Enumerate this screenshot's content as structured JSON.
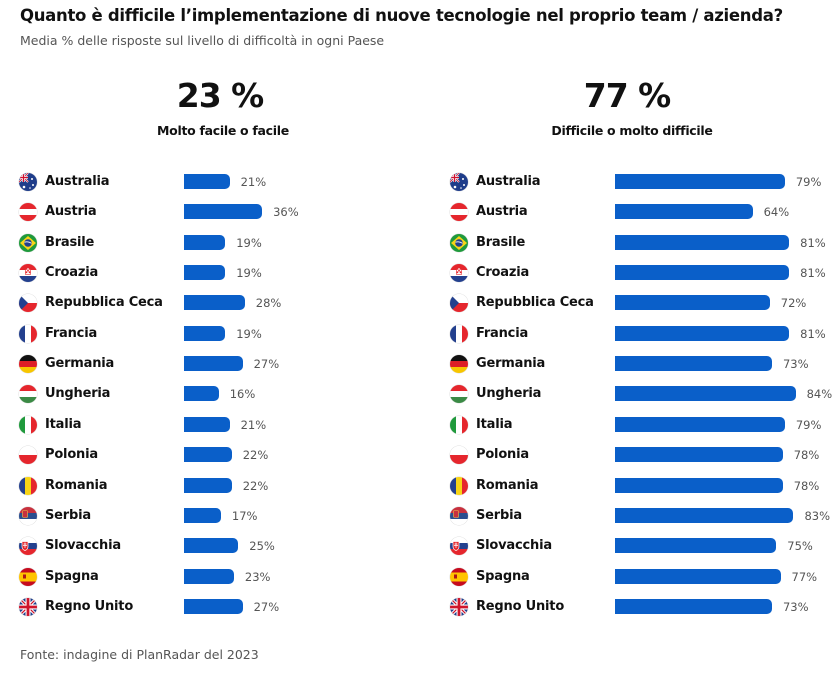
{
  "header": {
    "title": "Quanto è difficile l’implementazione di nuove tecnologie nel proprio team / azienda?",
    "subtitle": "Media % delle risposte sul livello di difficoltà in ogni Paese"
  },
  "footer": {
    "source": "Fonte: indagine di PlanRadar del 2023"
  },
  "chart_data": [
    {
      "type": "bar",
      "orientation": "horizontal",
      "title": "23 %",
      "subtitle": "Molto facile o facile",
      "total_value": 23,
      "color": "#0a5fc9",
      "categories": [
        "Australia",
        "Austria",
        "Brasile",
        "Croazia",
        "Repubblica Ceca",
        "Francia",
        "Germania",
        "Ungheria",
        "Italia",
        "Polonia",
        "Romania",
        "Serbia",
        "Slovacchia",
        "Spagna",
        "Regno Unito"
      ],
      "flags": [
        "australia-flag-icon",
        "austria-flag-icon",
        "brazil-flag-icon",
        "croatia-flag-icon",
        "czech-flag-icon",
        "france-flag-icon",
        "germany-flag-icon",
        "hungary-flag-icon",
        "italy-flag-icon",
        "poland-flag-icon",
        "romania-flag-icon",
        "serbia-flag-icon",
        "slovakia-flag-icon",
        "spain-flag-icon",
        "uk-flag-icon"
      ],
      "values": [
        21,
        36,
        19,
        19,
        28,
        19,
        27,
        16,
        21,
        22,
        22,
        17,
        25,
        23,
        27
      ],
      "labels": [
        "21%",
        "36%",
        "19%",
        "19%",
        "28%",
        "19%",
        "27%",
        "16%",
        "21%",
        "22%",
        "22%",
        "17%",
        "25%",
        "23%",
        "27%"
      ],
      "xlim": [
        0,
        100
      ],
      "grid": false
    },
    {
      "type": "bar",
      "orientation": "horizontal",
      "title": "77 %",
      "subtitle": "Difficile o molto difficile",
      "total_value": 77,
      "color": "#0a5fc9",
      "categories": [
        "Australia",
        "Austria",
        "Brasile",
        "Croazia",
        "Repubblica Ceca",
        "Francia",
        "Germania",
        "Ungheria",
        "Italia",
        "Polonia",
        "Romania",
        "Serbia",
        "Slovacchia",
        "Spagna",
        "Regno Unito"
      ],
      "flags": [
        "australia-flag-icon",
        "austria-flag-icon",
        "brazil-flag-icon",
        "croatia-flag-icon",
        "czech-flag-icon",
        "france-flag-icon",
        "germany-flag-icon",
        "hungary-flag-icon",
        "italy-flag-icon",
        "poland-flag-icon",
        "romania-flag-icon",
        "serbia-flag-icon",
        "slovakia-flag-icon",
        "spain-flag-icon",
        "uk-flag-icon"
      ],
      "values": [
        79,
        64,
        81,
        81,
        72,
        81,
        73,
        84,
        79,
        78,
        78,
        83,
        75,
        77,
        73
      ],
      "labels": [
        "79%",
        "64%",
        "81%",
        "81%",
        "72%",
        "81%",
        "73%",
        "84%",
        "79%",
        "78%",
        "78%",
        "83%",
        "75%",
        "77%",
        "73%"
      ],
      "xlim": [
        0,
        100
      ],
      "grid": false
    }
  ]
}
